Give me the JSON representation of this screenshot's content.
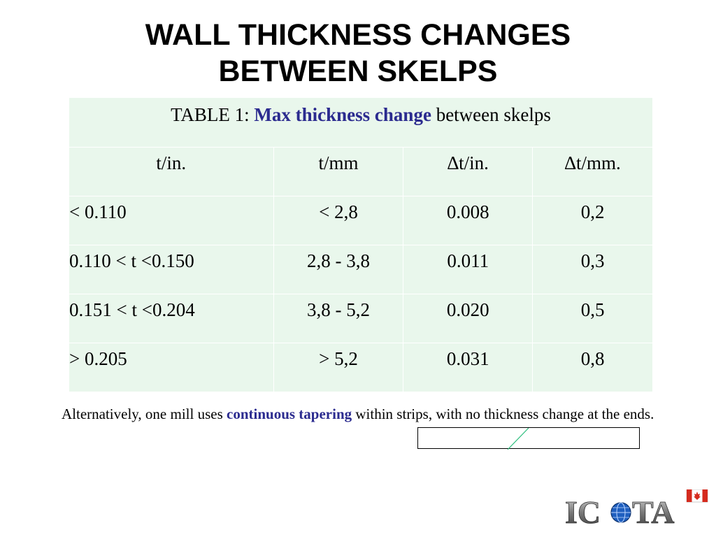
{
  "title": {
    "line1": "WALL THICKNESS CHANGES",
    "line2": "BETWEEN SKELPS"
  },
  "table": {
    "caption_prefix": "TABLE 1: ",
    "caption_highlight": "Max thickness change",
    "caption_suffix": " between skelps",
    "headers": [
      "t/in.",
      "t/mm",
      "∆t/in.",
      "∆t/mm."
    ],
    "rows": [
      [
        "< 0.110",
        "< 2,8",
        "0.008",
        "0,2"
      ],
      [
        "0.110 < t <0.150",
        "2,8 - 3,8",
        "0.011",
        "0,3"
      ],
      [
        "0.151 < t <0.204",
        "3,8 - 5,2",
        "0.020",
        "0,5"
      ],
      [
        "> 0.205",
        "> 5,2",
        "0.031",
        "0,8"
      ]
    ]
  },
  "footnote": {
    "prefix": "Alternatively, one mill uses ",
    "highlight": "continuous tapering",
    "suffix": " within strips, with no thickness change at the ends."
  },
  "logo": {
    "text_left": "IC",
    "text_right": "TA",
    "flag": "canada-flag-icon",
    "globe": "globe-icon"
  },
  "colors": {
    "table_bg": "#e9f7ec",
    "accent": "#2b2b8f",
    "box_line": "#2fbf7f",
    "logo_red": "#d52b1e"
  }
}
